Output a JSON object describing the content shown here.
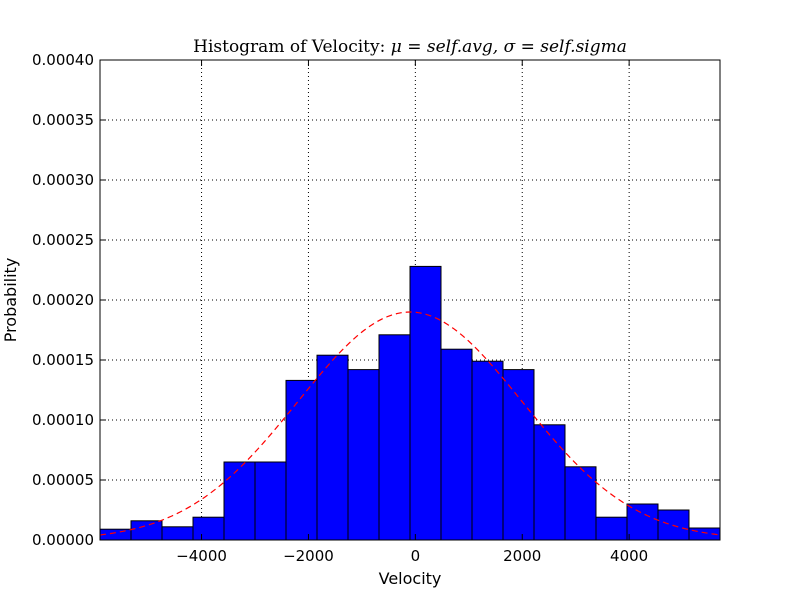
{
  "chart_data": {
    "type": "bar",
    "title": "Histogram of Velocity",
    "title_math": "μ = self.avg,  σ = self.sigma",
    "xlabel": "Velocity",
    "ylabel": "Probability",
    "xlim": [
      -5900,
      5700
    ],
    "ylim": [
      0,
      0.0004
    ],
    "grid": true,
    "bar_color": "#0000ff",
    "edge_color": "#000000",
    "curve_color": "#ff0000",
    "x_ticks": [
      {
        "value": -4000,
        "label": "−4000"
      },
      {
        "value": -2000,
        "label": "−2000"
      },
      {
        "value": 0,
        "label": "0"
      },
      {
        "value": 2000,
        "label": "2000"
      },
      {
        "value": 4000,
        "label": "4000"
      }
    ],
    "y_ticks": [
      {
        "value": 0.0,
        "label": "0.00000"
      },
      {
        "value": 5e-05,
        "label": "0.00005"
      },
      {
        "value": 0.0001,
        "label": "0.00010"
      },
      {
        "value": 0.00015,
        "label": "0.00015"
      },
      {
        "value": 0.0002,
        "label": "0.00020"
      },
      {
        "value": 0.00025,
        "label": "0.00025"
      },
      {
        "value": 0.0003,
        "label": "0.00030"
      },
      {
        "value": 0.00035,
        "label": "0.00035"
      },
      {
        "value": 0.0004,
        "label": "0.00040"
      }
    ],
    "bins": [
      {
        "x0": -5900,
        "x1": -5320,
        "value": 9e-06
      },
      {
        "x0": -5320,
        "x1": -4740,
        "value": 1.6e-05
      },
      {
        "x0": -4740,
        "x1": -4160,
        "value": 1.1e-05
      },
      {
        "x0": -4160,
        "x1": -3580,
        "value": 1.9e-05
      },
      {
        "x0": -3580,
        "x1": -3000,
        "value": 6.5e-05
      },
      {
        "x0": -3000,
        "x1": -2420,
        "value": 6.5e-05
      },
      {
        "x0": -2420,
        "x1": -1840,
        "value": 0.000133
      },
      {
        "x0": -1840,
        "x1": -1260,
        "value": 0.000154
      },
      {
        "x0": -1260,
        "x1": -680,
        "value": 0.000142
      },
      {
        "x0": -680,
        "x1": -100,
        "value": 0.000171
      },
      {
        "x0": -100,
        "x1": 480,
        "value": 0.000228
      },
      {
        "x0": 480,
        "x1": 1060,
        "value": 0.000159
      },
      {
        "x0": 1060,
        "x1": 1640,
        "value": 0.000149
      },
      {
        "x0": 1640,
        "x1": 2220,
        "value": 0.000142
      },
      {
        "x0": 2220,
        "x1": 2800,
        "value": 9.6e-05
      },
      {
        "x0": 2800,
        "x1": 3380,
        "value": 6.1e-05
      },
      {
        "x0": 3380,
        "x1": 3960,
        "value": 1.9e-05
      },
      {
        "x0": 3960,
        "x1": 4540,
        "value": 3e-05
      },
      {
        "x0": 4540,
        "x1": 5120,
        "value": 2.5e-05
      },
      {
        "x0": 5120,
        "x1": 5700,
        "value": 1e-05
      }
    ],
    "fit_curve": {
      "type": "normal_pdf",
      "mean": -100,
      "std": 2100,
      "style": "dashed"
    }
  }
}
